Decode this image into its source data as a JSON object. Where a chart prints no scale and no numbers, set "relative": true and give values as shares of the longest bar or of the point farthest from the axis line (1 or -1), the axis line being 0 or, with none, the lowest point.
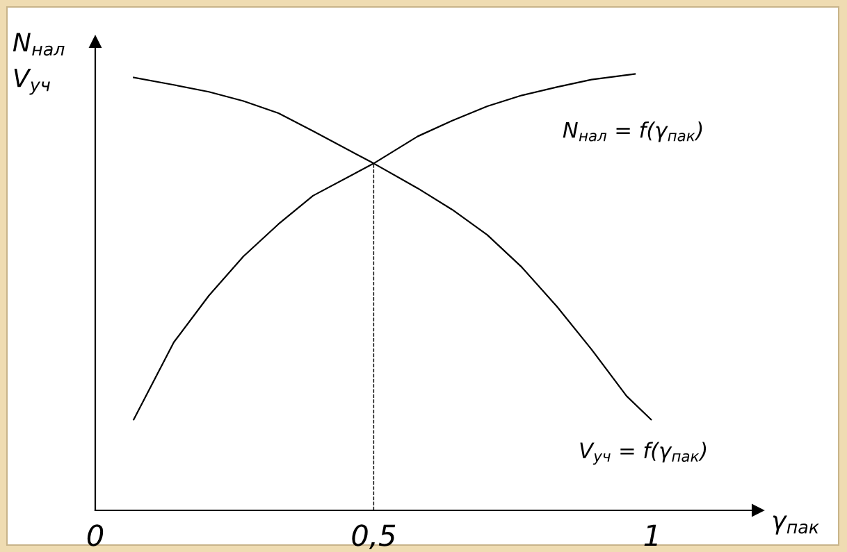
{
  "chart_data": {
    "type": "line",
    "relative": true,
    "xlabel": "γ$_{пак}$",
    "ylabel": "N$_{нал}$\nV$_{уч}$",
    "xlim": [
      0,
      1.19
    ],
    "xticks": [
      0,
      {
        "value": 0.5,
        "label": "0,5"
      },
      1
    ],
    "series": [
      {
        "name": "N$_{нал}$ = f(γ$_{пак}$)",
        "color": "#000000",
        "x": [
          0.069,
          0.141,
          0.204,
          0.266,
          0.329,
          0.391,
          0.5,
          0.579,
          0.641,
          0.704,
          0.766,
          0.829,
          0.891,
          0.969
        ],
        "values": [
          0.208,
          0.385,
          0.492,
          0.582,
          0.656,
          0.721,
          0.795,
          0.857,
          0.893,
          0.926,
          0.951,
          0.97,
          0.987,
          1.0
        ]
      },
      {
        "name": "V$_{уч}$ = f(γ$_{пак}$)",
        "color": "#000000",
        "x": [
          0.069,
          0.141,
          0.204,
          0.266,
          0.329,
          0.391,
          0.5,
          0.579,
          0.641,
          0.704,
          0.766,
          0.829,
          0.891,
          0.954,
          0.998
        ],
        "values": [
          0.992,
          0.975,
          0.959,
          0.938,
          0.91,
          0.869,
          0.795,
          0.738,
          0.689,
          0.631,
          0.557,
          0.467,
          0.369,
          0.262,
          0.208
        ]
      }
    ],
    "ref_lines": [
      {
        "axis": "x",
        "value": 0.5,
        "line_style": "dashed",
        "color": "#000000"
      }
    ],
    "grid": false,
    "legend": false,
    "marker": "none",
    "line_style": "solid"
  }
}
